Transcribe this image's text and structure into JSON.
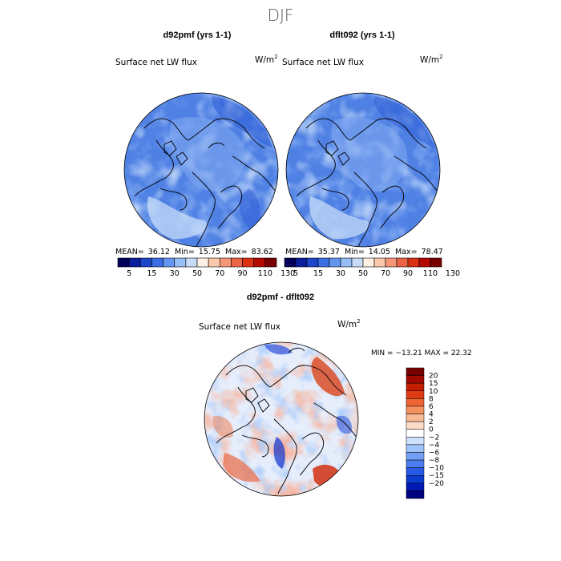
{
  "figure_title": "DJF",
  "colors": {
    "main_scale": [
      "#00005a",
      "#0a1e9b",
      "#1e46c8",
      "#3c6ee6",
      "#6496f0",
      "#96bef5",
      "#c8dcf8",
      "#fff0e6",
      "#fac8aa",
      "#f59678",
      "#eb6446",
      "#dc3214",
      "#b40a00",
      "#780000"
    ],
    "diff_scale": [
      "#000080",
      "#0019b4",
      "#0a3ccd",
      "#285ae6",
      "#4b7df0",
      "#73a0f5",
      "#a0c3fa",
      "#cde1fc",
      "#ffffff",
      "#fcdcc8",
      "#f8b996",
      "#f5915f",
      "#ee6432",
      "#e03c14",
      "#c41e00",
      "#a00a00",
      "#780000"
    ],
    "ocean_blue": "#5a8ae6",
    "land_blue": "#4a7ae0",
    "coast": "#000000"
  },
  "panels": {
    "left": {
      "title": "d92pmf (yrs 1-1)",
      "variable": "Surface net LW flux",
      "units": "W/m",
      "units_exp": "2",
      "mean_label": "MEAN=",
      "mean": "36.12",
      "min_label": "Min=",
      "min": "15.75",
      "max_label": "Max=",
      "max": "83.62"
    },
    "right": {
      "title": "dflt092 (yrs 1-1)",
      "variable": "Surface net LW flux",
      "units": "W/m",
      "units_exp": "2",
      "mean_label": "MEAN=",
      "mean": "35.37",
      "min_label": "Min=",
      "min": "14.05",
      "max_label": "Max=",
      "max": "78.47"
    },
    "diff": {
      "title": "d92pmf - dflt092",
      "variable": "Surface net LW flux",
      "units": "W/m",
      "units_exp": "2",
      "stats": "MIN = −13.21  MAX =  22.32"
    }
  },
  "chart_data": [
    {
      "type": "heatmap",
      "projection": "polar stereographic (north)",
      "title": "d92pmf (yrs 1-1)",
      "variable": "Surface net LW flux",
      "units": "W/m^2",
      "mean": 36.12,
      "min": 15.75,
      "max": 83.62,
      "colorbar_ticks": [
        "5",
        "15",
        "30",
        "50",
        "70",
        "90",
        "110",
        "130"
      ]
    },
    {
      "type": "heatmap",
      "projection": "polar stereographic (north)",
      "title": "dflt092 (yrs 1-1)",
      "variable": "Surface net LW flux",
      "units": "W/m^2",
      "mean": 35.37,
      "min": 14.05,
      "max": 78.47,
      "colorbar_ticks": [
        "5",
        "15",
        "30",
        "50",
        "70",
        "90",
        "110",
        "130"
      ]
    },
    {
      "type": "heatmap",
      "projection": "polar stereographic (north)",
      "title": "d92pmf - dflt092",
      "variable": "Surface net LW flux",
      "units": "W/m^2",
      "min": -13.21,
      "max": 22.32,
      "colorbar_ticks": [
        "20",
        "15",
        "10",
        "8",
        "6",
        "4",
        "2",
        "0",
        "−2",
        "−4",
        "−6",
        "−8",
        "−10",
        "−15",
        "−20"
      ]
    }
  ]
}
